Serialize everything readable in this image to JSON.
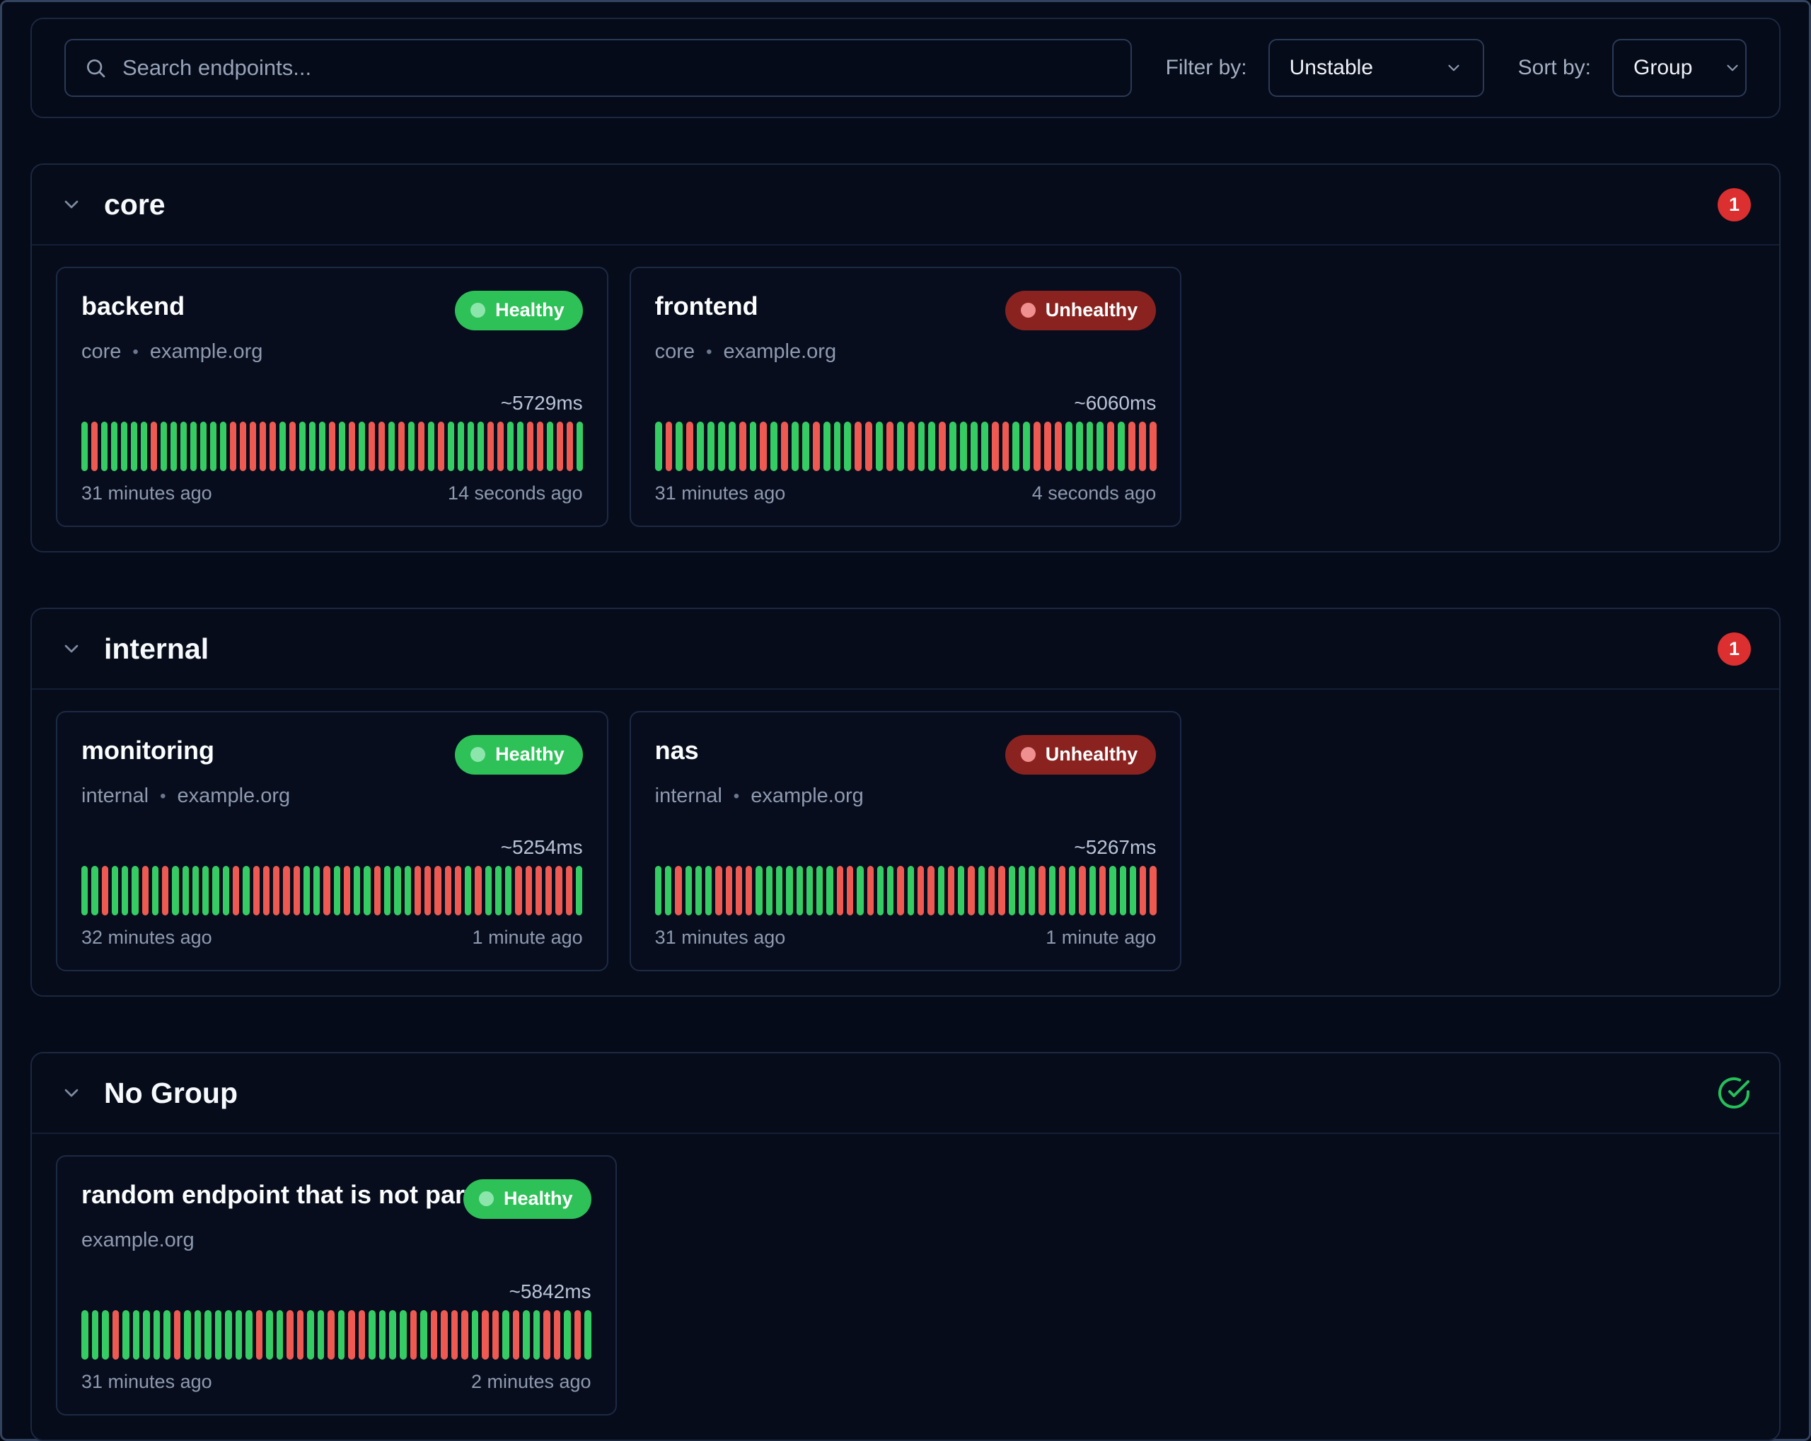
{
  "colors": {
    "page_bg": "#050b18",
    "frame_border": "#32425f",
    "panel_border": "#1c2840",
    "input_border": "#2a3a58",
    "group_bg": "#060c1a",
    "card_bg": "#070d1c",
    "card_border": "#1d2a44",
    "divider": "#141f36",
    "count_red": "#dc2f2f",
    "healthy_bg": "#2ec158",
    "healthy_dot": "#8ce6ac",
    "unhealthy_bg": "#8a2320",
    "unhealthy_dot": "#f08f8f",
    "bar_green": "#35cd63",
    "bar_red": "#ee5a52",
    "check_green": "#25c05a",
    "icon_gray": "#8e9bb0"
  },
  "toolbar": {
    "search_placeholder": "Search endpoints...",
    "filter_label": "Filter by:",
    "filter_value": "Unstable",
    "sort_label": "Sort by:",
    "sort_value": "Group"
  },
  "ui": {
    "dot": "•"
  },
  "groups": [
    {
      "name": "core",
      "badge_count": "1",
      "endpoints": [
        {
          "name": "backend",
          "status": "Healthy",
          "group": "core",
          "host": "example.org",
          "latency": "~5729ms",
          "oldest": "31 minutes ago",
          "newest": "14 seconds ago",
          "history": "GRGGGGGRGGGGGGGRRRRRGRGGGRGRGRRGRGRGRGGGGRRGGRRGRRG"
        },
        {
          "name": "frontend",
          "status": "Unhealthy",
          "group": "core",
          "host": "example.org",
          "latency": "~6060ms",
          "oldest": "31 minutes ago",
          "newest": "4 seconds ago",
          "history": "GRGRGGGGRGRGRGGRGGGRRGRGRGGRGGGGRRGGRRRGGGGRGRRR"
        }
      ]
    },
    {
      "name": "internal",
      "badge_count": "1",
      "endpoints": [
        {
          "name": "monitoring",
          "status": "Healthy",
          "group": "internal",
          "host": "example.org",
          "latency": "~5254ms",
          "oldest": "32 minutes ago",
          "newest": "1 minute ago",
          "history": "GGRGGGRGRGGGGGGRGRRRRRGGRGRGGRGGGRRRRRGRGGGRRRRRRG"
        },
        {
          "name": "nas",
          "status": "Unhealthy",
          "group": "internal",
          "host": "example.org",
          "latency": "~5267ms",
          "oldest": "31 minutes ago",
          "newest": "1 minute ago",
          "history": "GGRGGGRRRRGGGGGGGGRRGRGGRGRRGRGRGRRGGGRGRGRGRGGGRR"
        }
      ]
    },
    {
      "name": "No Group",
      "badge_count": null,
      "endpoints": [
        {
          "name": "random endpoint that is not part...",
          "status": "Healthy",
          "group": null,
          "host": "example.org",
          "latency": "~5842ms",
          "oldest": "31 minutes ago",
          "newest": "2 minutes ago",
          "history": "GGGRGGGGGRGGGGGGGRGGRRGGRGRRGGGGRGRRRRGRRGRGGRRGRG"
        }
      ]
    }
  ]
}
